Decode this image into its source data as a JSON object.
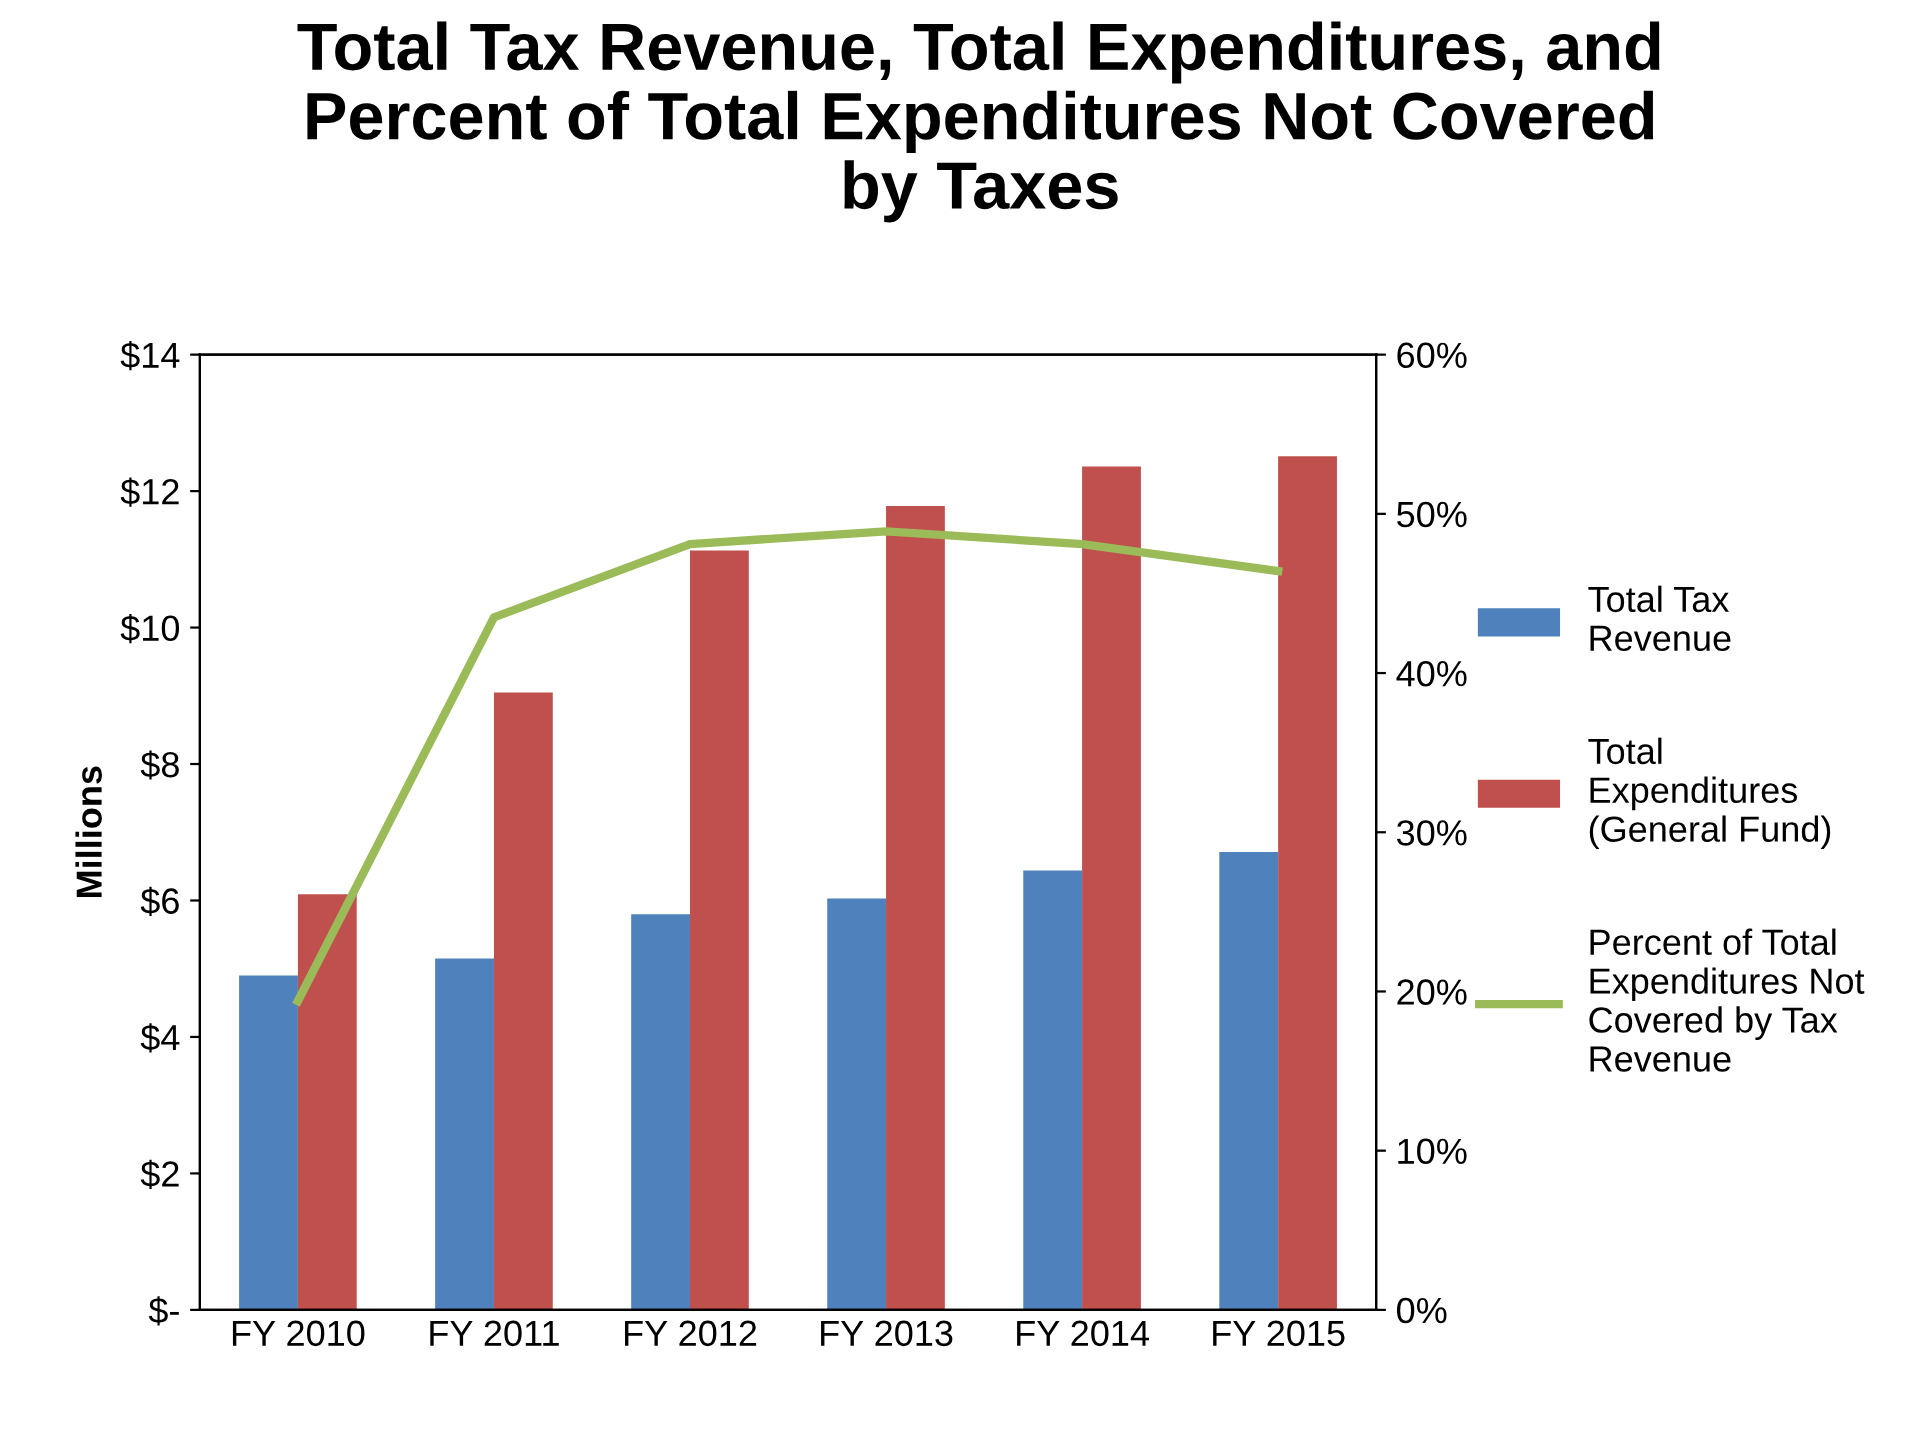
{
  "chart_data": {
    "type": "bar",
    "title": "Total Tax Revenue, Total Expenditures, and Percent of Total Expenditures Not Covered by Taxes",
    "ylabel": "Millions",
    "categories": [
      "FY 2010",
      "FY 2011",
      "FY 2012",
      "FY 2013",
      "FY 2014",
      "FY 2015"
    ],
    "series": [
      {
        "name": "Total Tax Revenue",
        "color": "#4f81bd",
        "values": [
          4.9,
          5.15,
          5.8,
          6.03,
          6.44,
          6.71
        ]
      },
      {
        "name": "Total Expenditures (General Fund)",
        "color": "#c0504d",
        "values": [
          6.09,
          9.05,
          11.13,
          11.78,
          12.36,
          12.51
        ]
      },
      {
        "name": "Percent of Total Expenditures Not Covered by Tax Revenue",
        "type": "line",
        "axis": "y2",
        "color": "#9bbb59",
        "marker": "none",
        "values": [
          19.4,
          43.5,
          48.1,
          48.9,
          48.1,
          46.4
        ]
      }
    ],
    "ylim": [
      0,
      14
    ],
    "yticks": [
      {
        "value": 0,
        "label": "$-"
      },
      {
        "value": 2,
        "label": "$2"
      },
      {
        "value": 4,
        "label": "$4"
      },
      {
        "value": 6,
        "label": "$6"
      },
      {
        "value": 8,
        "label": "$8"
      },
      {
        "value": 10,
        "label": "$10"
      },
      {
        "value": 12,
        "label": "$12"
      },
      {
        "value": 14,
        "label": "$14"
      }
    ],
    "y2lim": [
      0,
      60
    ],
    "y2ticks": [
      {
        "value": 0,
        "label": "0%"
      },
      {
        "value": 10,
        "label": "10%"
      },
      {
        "value": 20,
        "label": "20%"
      },
      {
        "value": 30,
        "label": "30%"
      },
      {
        "value": 40,
        "label": "40%"
      },
      {
        "value": 50,
        "label": "50%"
      },
      {
        "value": 60,
        "label": "60%"
      }
    ],
    "grid": false,
    "legend": "right"
  }
}
